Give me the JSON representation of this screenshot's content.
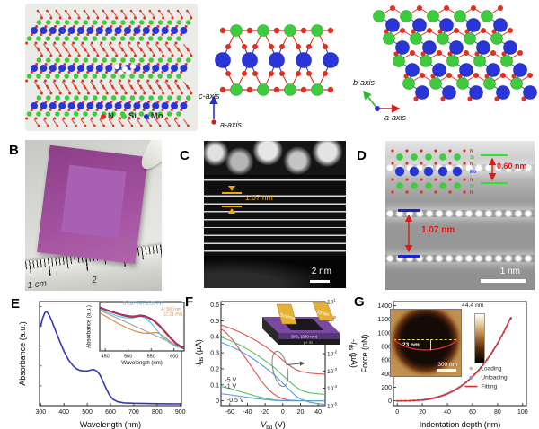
{
  "figure": {
    "panels": {
      "A": {
        "label": "A",
        "legend": [
          {
            "label": "N",
            "color": "#e23020"
          },
          {
            "label": "Si",
            "color": "#3ecc3e"
          },
          {
            "label": "Mo",
            "color": "#2a35d8"
          }
        ],
        "axes": {
          "side_vertical": "c-axis",
          "side_out": "a-axis",
          "top_up": "b-axis",
          "top_right": "a-axis"
        }
      },
      "B": {
        "label": "B",
        "ruler_mark_1": "1 cm",
        "ruler_mark_2": "2"
      },
      "C": {
        "label": "C",
        "annotation": "1.07 nm",
        "scalebar": "2 nm"
      },
      "D": {
        "label": "D",
        "d_monolayer": "0.60 nm",
        "d_interlayer": "1.07 nm",
        "scalebar": "1 nm",
        "atom_labels": [
          {
            "label": "N",
            "color": "#e23020"
          },
          {
            "label": "Si",
            "color": "#3ecc3e"
          },
          {
            "label": "N",
            "color": "#e23020"
          },
          {
            "label": "Mo",
            "color": "#2a35d8"
          },
          {
            "label": "N",
            "color": "#e23020"
          },
          {
            "label": "Si",
            "color": "#3ecc3e"
          },
          {
            "label": "N",
            "color": "#e23020"
          }
        ]
      },
      "E": {
        "label": "E"
      },
      "F": {
        "label": "F",
        "inset": {
          "source": "Source",
          "drain": "Drain",
          "oxide": "SiO₂ (290 nm)",
          "substrate": "p+ Si"
        }
      },
      "G": {
        "label": "G",
        "inset": {
          "height_scale": "44.4 nm",
          "depth": "23 nm",
          "scalebar": "300 nm"
        }
      }
    }
  },
  "chart_data": [
    {
      "id": "E",
      "type": "line",
      "xlabel": "Wavelength (nm)",
      "ylabel": "Absorbance (a.u.)",
      "xlim": [
        295,
        905
      ],
      "ylim": [
        0,
        1.05
      ],
      "xticks": [
        300,
        400,
        500,
        600,
        700,
        800,
        900
      ],
      "yticks": [],
      "yminor": [
        0.2,
        0.4,
        0.6,
        0.8,
        1.0
      ],
      "series": [
        {
          "name": "absorbance-spectrum",
          "color": "#3535bb",
          "width": 1.6,
          "x": [
            300,
            308,
            318,
            326,
            335,
            345,
            360,
            380,
            400,
            420,
            440,
            455,
            470,
            485,
            500,
            515,
            528,
            540,
            552,
            565,
            580,
            595,
            610,
            630,
            660,
            700,
            750,
            800,
            850,
            900
          ],
          "y": [
            0.8,
            0.88,
            0.94,
            0.95,
            0.92,
            0.87,
            0.78,
            0.66,
            0.55,
            0.46,
            0.4,
            0.37,
            0.355,
            0.35,
            0.35,
            0.36,
            0.365,
            0.35,
            0.32,
            0.26,
            0.18,
            0.11,
            0.065,
            0.04,
            0.028,
            0.024,
            0.022,
            0.02,
            0.019,
            0.018
          ]
        }
      ]
    },
    {
      "id": "E-inset",
      "type": "line",
      "xlabel": "Wavelength (nm)",
      "ylabel": "Absorbance (a.u.)",
      "xlim": [
        438,
        622
      ],
      "ylim": [
        0,
        1.08
      ],
      "xticks": [
        450,
        500,
        550,
        600
      ],
      "yticks": [],
      "series": [
        {
          "name": "linear-background",
          "color": "#999999",
          "width": 1,
          "x": [
            440,
            620
          ],
          "y": [
            0.9,
            0.06
          ]
        },
        {
          "name": "A-exciton-fit",
          "color": "#e08a3c",
          "width": 1.2,
          "x": [
            440,
            460,
            480,
            500,
            515,
            530,
            545,
            555,
            560,
            568,
            578,
            590,
            602,
            612,
            620
          ],
          "y": [
            0.84,
            0.72,
            0.6,
            0.5,
            0.44,
            0.4,
            0.39,
            0.405,
            0.41,
            0.39,
            0.32,
            0.22,
            0.13,
            0.08,
            0.055
          ]
        },
        {
          "name": "B-exciton-fit",
          "color": "#55c8e8",
          "width": 1.2,
          "x": [
            440,
            458,
            476,
            494,
            508,
            518,
            527,
            538,
            550,
            562,
            576,
            590,
            604,
            620
          ],
          "y": [
            0.92,
            0.85,
            0.78,
            0.74,
            0.735,
            0.755,
            0.775,
            0.73,
            0.62,
            0.47,
            0.3,
            0.18,
            0.1,
            0.055
          ]
        },
        {
          "name": "measured-spectrum",
          "color": "#8a1f6e",
          "width": 2.2,
          "x": [
            440,
            452,
            464,
            476,
            488,
            500,
            510,
            519,
            527,
            536,
            546,
            556,
            568,
            580,
            592,
            604,
            616,
            620
          ],
          "y": [
            0.96,
            0.915,
            0.875,
            0.835,
            0.8,
            0.775,
            0.765,
            0.775,
            0.79,
            0.775,
            0.735,
            0.675,
            0.565,
            0.43,
            0.29,
            0.17,
            0.09,
            0.07
          ]
        },
        {
          "name": "total-fit",
          "color": "#d04040",
          "width": 0.8,
          "x": [
            440,
            452,
            464,
            476,
            488,
            500,
            510,
            519,
            527,
            536,
            546,
            556,
            568,
            580,
            592,
            604,
            616,
            620
          ],
          "y": [
            0.96,
            0.915,
            0.875,
            0.835,
            0.8,
            0.775,
            0.765,
            0.775,
            0.79,
            0.775,
            0.735,
            0.675,
            0.565,
            0.43,
            0.29,
            0.17,
            0.09,
            0.07
          ]
        }
      ],
      "annotations": [
        {
          "type": "text",
          "x": 533,
          "y": 1.03,
          "text": "B: 527 nm (2.35 eV)",
          "color": "#3aa0d8",
          "size": 5
        },
        {
          "type": "text",
          "x": 594,
          "y": 0.9,
          "text": "A: 560 nm",
          "color": "#e08a3c",
          "size": 5
        },
        {
          "type": "text",
          "x": 598,
          "y": 0.79,
          "text": "(2.21 eV)",
          "color": "#e08a3c",
          "size": 5
        }
      ]
    },
    {
      "id": "F",
      "type": "line",
      "xlabel": "V_{bg} (V)",
      "ylabel": "-I_{ds} (µA)",
      "ylabel_right": "-I_{ds} (µA)",
      "xlim": [
        -70,
        48
      ],
      "ylim": [
        -0.03,
        0.62
      ],
      "ylog": [
        -5,
        1
      ],
      "xticks": [
        -60,
        -40,
        -20,
        0,
        20,
        40
      ],
      "yticks": [
        0,
        0.1,
        0.2,
        0.3,
        0.4,
        0.5,
        0.6
      ],
      "ytick_dec": 1,
      "series": [
        {
          "name": "Vds -5 V linear",
          "color": "#d95550",
          "width": 1.1,
          "axis": "left",
          "x": [
            -70,
            -65,
            -60,
            -55,
            -50,
            -45,
            -40,
            -35,
            -30,
            -25,
            -20,
            -15,
            -10,
            -5,
            0,
            5,
            10,
            20,
            48
          ],
          "y": [
            0.45,
            0.43,
            0.4,
            0.37,
            0.33,
            0.29,
            0.25,
            0.21,
            0.17,
            0.13,
            0.095,
            0.065,
            0.042,
            0.025,
            0.013,
            0.006,
            0.003,
            0.001,
            0.0003
          ]
        },
        {
          "name": "Vds -1 V linear",
          "color": "#53c06a",
          "width": 1.1,
          "axis": "left",
          "x": [
            -70,
            -65,
            -60,
            -55,
            -50,
            -45,
            -40,
            -35,
            -30,
            -25,
            -20,
            -15,
            -10,
            -5,
            0,
            5,
            10,
            20,
            48
          ],
          "y": [
            0.09,
            0.084,
            0.077,
            0.069,
            0.061,
            0.053,
            0.045,
            0.037,
            0.029,
            0.022,
            0.016,
            0.011,
            0.007,
            0.004,
            0.002,
            0.001,
            0.0006,
            0.0002,
            0.0001
          ]
        },
        {
          "name": "Vds -0.5 V linear",
          "color": "#5b9bd5",
          "width": 1.1,
          "axis": "left",
          "x": [
            -70,
            -65,
            -60,
            -55,
            -50,
            -45,
            -40,
            -35,
            -30,
            -25,
            -20,
            -15,
            -10,
            -5,
            0,
            5,
            10,
            20,
            48
          ],
          "y": [
            0.045,
            0.042,
            0.038,
            0.034,
            0.03,
            0.026,
            0.022,
            0.018,
            0.014,
            0.011,
            0.008,
            0.005,
            0.003,
            0.002,
            0.001,
            0.0005,
            0.0003,
            0.0001,
            5e-05
          ]
        },
        {
          "name": "Vds -5 V log",
          "color": "#d95550",
          "width": 1.1,
          "axis": "right",
          "x": [
            -70,
            -60,
            -50,
            -40,
            -30,
            -20,
            -10,
            -5,
            0,
            5,
            10,
            15,
            20,
            30,
            40,
            48
          ],
          "y": [
            0.45,
            0.3,
            0.185,
            0.105,
            0.055,
            0.026,
            0.011,
            0.007,
            0.0042,
            0.0026,
            0.0017,
            0.0012,
            0.00095,
            0.00075,
            0.00068,
            0.00065
          ]
        },
        {
          "name": "Vds -1 V log",
          "color": "#53c06a",
          "width": 1.1,
          "axis": "right",
          "x": [
            -70,
            -60,
            -50,
            -40,
            -30,
            -20,
            -10,
            -5,
            0,
            5,
            10,
            15,
            20,
            30,
            40,
            48
          ],
          "y": [
            0.09,
            0.058,
            0.034,
            0.018,
            0.0088,
            0.0039,
            0.0016,
            0.00095,
            0.00055,
            0.00032,
            0.00019,
            0.00012,
            8e-05,
            5.5e-05,
            4.8e-05,
            4.5e-05
          ]
        },
        {
          "name": "Vds -0.5 V log",
          "color": "#5b9bd5",
          "width": 1.1,
          "axis": "right",
          "x": [
            -70,
            -60,
            -50,
            -40,
            -30,
            -20,
            -10,
            -5,
            0,
            5,
            10,
            15,
            20,
            30,
            40,
            48
          ],
          "y": [
            0.045,
            0.028,
            0.016,
            0.0082,
            0.0038,
            0.0016,
            0.00062,
            0.00036,
            0.0002,
            0.00011,
            6e-05,
            3.5e-05,
            2.4e-05,
            1.6e-05,
            1.3e-05,
            1.2e-05
          ]
        }
      ],
      "annotations": [
        {
          "type": "text",
          "x": -59,
          "y": 0.118,
          "text": "-5 V",
          "color": "#222",
          "size": 7
        },
        {
          "type": "text",
          "x": -59,
          "y": 0.078,
          "text": "-1 V",
          "color": "#222",
          "size": 7
        },
        {
          "type": "text",
          "x": -63,
          "y": -0.008,
          "text": "-0.5 V",
          "color": "#222",
          "size": 7,
          "anchor": "start"
        },
        {
          "type": "ellipse",
          "x": -3,
          "y": 0.2,
          "rx": 8,
          "ry": 20,
          "rot": -12,
          "color": "#777"
        },
        {
          "type": "arrow",
          "x1": 4,
          "y1": 0.225,
          "x2": 24,
          "y2": 0.235,
          "color": "#555"
        }
      ]
    },
    {
      "id": "G",
      "type": "scatter",
      "xlabel": "Indentation depth (nm)",
      "ylabel": "Force (nN)",
      "xlim": [
        -3,
        103
      ],
      "ylim": [
        -70,
        1460
      ],
      "xticks": [
        0,
        20,
        40,
        60,
        80,
        100
      ],
      "yticks": [
        0,
        200,
        400,
        600,
        800,
        1000,
        1200,
        1400
      ],
      "series": [
        {
          "name": "Loading",
          "color": "#b8b8b8",
          "style": "dots",
          "r": 1.2,
          "x": [
            0,
            10,
            20,
            25,
            30,
            35,
            40,
            45,
            50,
            55,
            60,
            65,
            70,
            75,
            80,
            85,
            90,
            91
          ],
          "y": [
            2,
            4,
            15,
            28,
            48,
            74,
            108,
            153,
            210,
            278,
            358,
            456,
            570,
            700,
            848,
            1016,
            1206,
            1226
          ]
        },
        {
          "name": "Unloading",
          "color": "#9090cc",
          "style": "dots",
          "r": 1.2,
          "x": [
            0,
            10,
            20,
            25,
            30,
            35,
            40,
            45,
            50,
            55,
            60,
            65,
            70,
            75,
            80,
            85,
            90,
            91
          ],
          "y": [
            -2,
            1,
            11,
            24,
            42,
            68,
            103,
            147,
            202,
            272,
            353,
            450,
            562,
            692,
            842,
            1010,
            1200,
            1220
          ]
        },
        {
          "name": "Fitting",
          "color": "#d03030",
          "width": 1.5,
          "x": [
            0,
            10,
            20,
            25,
            30,
            35,
            40,
            45,
            50,
            55,
            60,
            65,
            70,
            75,
            80,
            85,
            90,
            91
          ],
          "y": [
            0,
            2,
            13,
            26,
            45,
            71,
            106,
            150,
            206,
            275,
            356,
            453,
            566,
            696,
            845,
            1013,
            1203,
            1223
          ]
        }
      ],
      "legend": {
        "fx": 0.55,
        "fy": 0.66,
        "dy": 10,
        "items": [
          {
            "label": "Loading",
            "color": "#b8b8b8",
            "marker": "dot"
          },
          {
            "label": "Unloading",
            "color": "#9090cc",
            "marker": "dot"
          },
          {
            "label": "Fitting",
            "color": "#d03030",
            "marker": "line"
          }
        ]
      }
    }
  ]
}
